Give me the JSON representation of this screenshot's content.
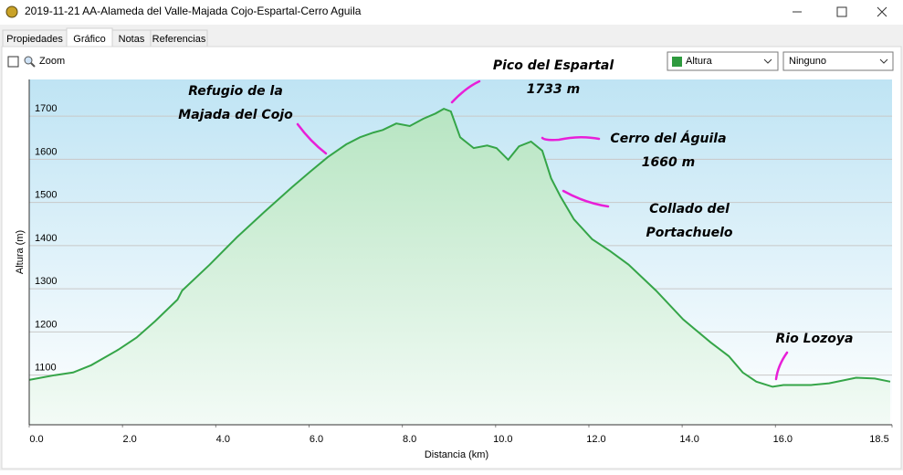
{
  "window": {
    "title": "2019-11-21 AA-Alameda del Valle-Majada Cojo-Espartal-Cerro Aguila"
  },
  "tabs": [
    "Propiedades",
    "Gráfico",
    "Notas",
    "Referencias"
  ],
  "toolbar": {
    "zoom": "Zoom",
    "series_select": "Altura",
    "second_select": "Ninguno"
  },
  "chart_data": {
    "type": "line",
    "xlabel": "Distancia  (km)",
    "ylabel": "Altura (m)",
    "color": "#35a548",
    "x": [
      0,
      0.55,
      0.94,
      1.33,
      1.91,
      2.3,
      2.7,
      3.18,
      3.28,
      3.87,
      4.45,
      5.04,
      5.63,
      6.02,
      6.4,
      6.8,
      7.09,
      7.38,
      7.58,
      7.87,
      8.16,
      8.45,
      8.71,
      8.89,
      9.04,
      9.24,
      9.53,
      9.82,
      10.02,
      10.27,
      10.5,
      10.76,
      11.0,
      11.19,
      11.39,
      11.68,
      12.07,
      12.46,
      12.85,
      13.44,
      14.02,
      14.61,
      15.0,
      15.3,
      15.59,
      15.94,
      16.17,
      16.76,
      17.15,
      17.73,
      18.13,
      18.46
    ],
    "values": [
      1089,
      1100,
      1106,
      1123,
      1159,
      1187,
      1225,
      1275,
      1296,
      1356,
      1419,
      1478,
      1535,
      1571,
      1605,
      1635,
      1651,
      1662,
      1668,
      1683,
      1677,
      1694,
      1706,
      1717,
      1711,
      1651,
      1626,
      1632,
      1626,
      1599,
      1630,
      1641,
      1620,
      1556,
      1514,
      1461,
      1415,
      1387,
      1356,
      1296,
      1229,
      1176,
      1144,
      1106,
      1085,
      1073,
      1077,
      1077,
      1081,
      1094,
      1092,
      1085
    ],
    "xlim": [
      0,
      18.5
    ],
    "ylim": [
      985,
      1785
    ],
    "xticks": [
      {
        "value": 0,
        "label": "0.0"
      },
      {
        "value": 2,
        "label": "2.0"
      },
      {
        "value": 4,
        "label": "4.0"
      },
      {
        "value": 6,
        "label": "6.0"
      },
      {
        "value": 8,
        "label": "8.0"
      },
      {
        "value": 10,
        "label": "10.0"
      },
      {
        "value": 12,
        "label": "12.0"
      },
      {
        "value": 14,
        "label": "14.0"
      },
      {
        "value": 16,
        "label": "16.0"
      },
      18.5
    ],
    "yticks": [
      1100,
      1200,
      1300,
      1400,
      1500,
      1600,
      1700
    ],
    "grid": true,
    "annotations": [
      {
        "lines": [
          "Refugio de la",
          "Majada del Cojo"
        ]
      },
      {
        "lines": [
          "Pico del Espartal",
          "1733 m"
        ]
      },
      {
        "lines": [
          "Cerro del Águila",
          "1660 m"
        ]
      },
      {
        "lines": [
          "Collado del",
          "Portachuelo"
        ]
      },
      {
        "lines": [
          "Rio Lozoya"
        ]
      }
    ]
  }
}
